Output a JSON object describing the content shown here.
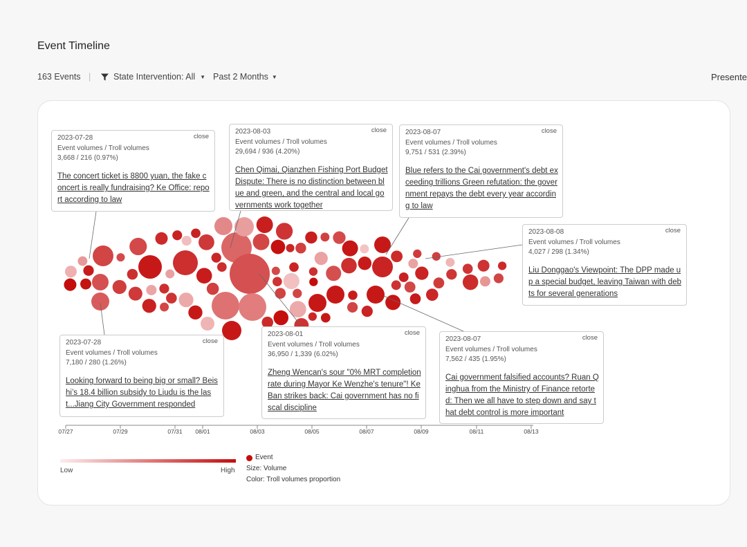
{
  "header": {
    "title": "Event Timeline"
  },
  "toolbar": {
    "event_count": "163 Events",
    "separator": "|",
    "filter_label": "State Intervention: All",
    "range_label": "Past 2 Months",
    "presenter_label": "Presente"
  },
  "axis": {
    "ticks": [
      "07/27",
      "07/29",
      "07/31",
      "08/01",
      "08/03",
      "08/05",
      "08/07",
      "08/09",
      "08/11",
      "08/13"
    ]
  },
  "colors": {
    "accent": "#c40d0d",
    "low": "#fdecec"
  },
  "tooltips": [
    {
      "date": "2023-07-28",
      "close": "close",
      "label": "Event volumes / Troll volumes",
      "value": "3,668 / 216 (0.97%)",
      "title": "The concert ticket is 8800 yuan, the fake concert is really fundraising? Ke Office: report according to law"
    },
    {
      "date": "2023-08-03",
      "close": "close",
      "label": "Event volumes / Troll volumes",
      "value": "29,694 / 936 (4.20%)",
      "title": "Chen Qimai, Qianzhen Fishing Port Budget Dispute: There is no distinction between blue and green, and the central and local governments work together"
    },
    {
      "date": "2023-08-07",
      "close": "close",
      "label": "Event volumes / Troll volumes",
      "value": "9,751 / 531 (2.39%)",
      "title": "Blue refers to the Cai government's debt exceeding trillions Green refutation: the government repays the debt every year according to law"
    },
    {
      "date": "2023-08-08",
      "close": "close",
      "label": "Event volumes / Troll volumes",
      "value": "4,027 / 298 (1.34%)",
      "title": "Liu Donggao's Viewpoint: The DPP made up a special budget, leaving Taiwan with debts for several generations"
    },
    {
      "date": "2023-07-28",
      "close": "close",
      "label": "Event volumes / Troll volumes",
      "value": "7,180 / 280 (1.26%)",
      "title": "Looking forward to being big or small? Beishi’s 18.4 billion subsidy to Liudu is the last...Jiang City Government responded"
    },
    {
      "date": "2023-08-01",
      "close": "close",
      "label": "Event volumes / Troll volumes",
      "value": "36,950 / 1,339 (6.02%)",
      "title": "Zheng Wencan's sour \"0% MRT completion rate during Mayor Ke Wenzhe's tenure\"! Ke Ban strikes back: Cai government has no fiscal discipline"
    },
    {
      "date": "2023-08-07",
      "close": "close",
      "label": "Event volumes / Troll volumes",
      "value": "7,562 / 435 (1.95%)",
      "title": "Cai government falsified accounts? Ruan Qinghua from the Ministry of Finance retorted: Then we all have to step down and say that debt control is more important"
    }
  ],
  "legend": {
    "low": "Low",
    "high": "High",
    "event": "Event",
    "size": "Size: Volume",
    "color": "Color: Troll volumes proportion"
  }
}
